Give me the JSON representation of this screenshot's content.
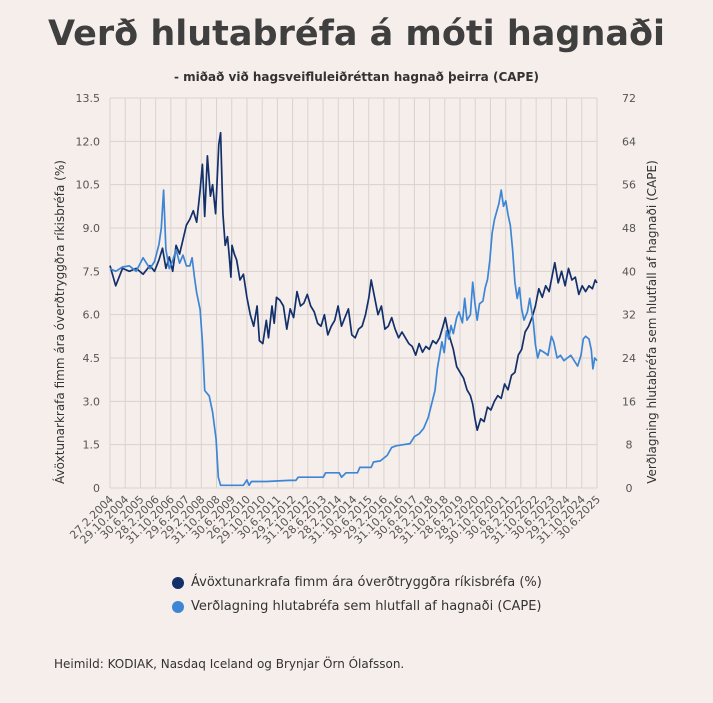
{
  "chart_data": {
    "type": "line",
    "title": "Verð hlutabréfa á móti hagnaði",
    "subtitle": "- miðað við hagsveifluleiðréttan hagnað þeirra (CAPE)",
    "ylabel_left": "Ávöxtunarkrafa fimm ára óverðtryggðra ríkisbréfa (%)",
    "ylabel_right": "Verðlagning hlutabréfa sem hlutfall af hagnaði (CAPE)",
    "ylim_left": [
      0,
      13.5
    ],
    "ylim_right": [
      0,
      72
    ],
    "yticks_left": [
      "0",
      "1.5",
      "3.0",
      "4.5",
      "6.0",
      "7.5",
      "9.0",
      "10.5",
      "12.0",
      "13.5"
    ],
    "yticks_right": [
      "0",
      "8",
      "16",
      "24",
      "32",
      "40",
      "48",
      "56",
      "64",
      "72"
    ],
    "x_tick_labels": [
      "27.2.2004",
      "29.10.2004",
      "30.6.2005",
      "28.2.2006",
      "31.10.2006",
      "29.6.2007",
      "29.2.2008",
      "31.10.2008",
      "30.6.2009",
      "26.2.2010",
      "29.10.2010",
      "30.6.2011",
      "29.2.2012",
      "31.10.2012",
      "28.6.2013",
      "28.2.2014",
      "31.10.2014",
      "30.6.2015",
      "29.2.2016",
      "31.10.2016",
      "30.6.2017",
      "28.2.2018",
      "31.10.2018",
      "28.6.2019",
      "28.2.2020",
      "30.10.2020",
      "30.6.2021",
      "28.2.2022",
      "31.10.2022",
      "30.6.2023",
      "29.2.2024",
      "31.10.2024",
      "30.6.2025"
    ],
    "grid": true,
    "legend_position": "bottom",
    "series": [
      {
        "name": "Ávöxtunarkrafa fimm ára óverðtryggðra ríkisbréfa (%)",
        "axis": "left",
        "color": "#13306b",
        "points": [
          [
            2004.15,
            7.7
          ],
          [
            2004.4,
            7.0
          ],
          [
            2004.7,
            7.6
          ],
          [
            2005.0,
            7.5
          ],
          [
            2005.3,
            7.6
          ],
          [
            2005.6,
            7.4
          ],
          [
            2005.9,
            7.7
          ],
          [
            2006.1,
            7.5
          ],
          [
            2006.3,
            7.9
          ],
          [
            2006.45,
            8.3
          ],
          [
            2006.6,
            7.6
          ],
          [
            2006.75,
            8.0
          ],
          [
            2006.9,
            7.5
          ],
          [
            2007.05,
            8.4
          ],
          [
            2007.2,
            8.1
          ],
          [
            2007.35,
            8.6
          ],
          [
            2007.5,
            9.1
          ],
          [
            2007.65,
            9.3
          ],
          [
            2007.8,
            9.6
          ],
          [
            2007.95,
            9.2
          ],
          [
            2008.1,
            10.3
          ],
          [
            2008.2,
            11.2
          ],
          [
            2008.3,
            9.4
          ],
          [
            2008.42,
            11.5
          ],
          [
            2008.55,
            10.1
          ],
          [
            2008.65,
            10.5
          ],
          [
            2008.78,
            9.5
          ],
          [
            2008.92,
            11.9
          ],
          [
            2009.0,
            12.3
          ],
          [
            2009.1,
            9.5
          ],
          [
            2009.2,
            8.4
          ],
          [
            2009.3,
            8.7
          ],
          [
            2009.38,
            8.0
          ],
          [
            2009.45,
            7.3
          ],
          [
            2009.5,
            8.4
          ],
          [
            2009.6,
            8.1
          ],
          [
            2009.7,
            7.9
          ],
          [
            2009.85,
            7.2
          ],
          [
            2010.0,
            7.4
          ],
          [
            2010.15,
            6.6
          ],
          [
            2010.3,
            6.0
          ],
          [
            2010.45,
            5.6
          ],
          [
            2010.6,
            6.3
          ],
          [
            2010.7,
            5.1
          ],
          [
            2010.85,
            5.0
          ],
          [
            2011.0,
            5.8
          ],
          [
            2011.1,
            5.2
          ],
          [
            2011.25,
            6.3
          ],
          [
            2011.35,
            5.7
          ],
          [
            2011.45,
            6.6
          ],
          [
            2011.6,
            6.5
          ],
          [
            2011.75,
            6.3
          ],
          [
            2011.9,
            5.5
          ],
          [
            2012.05,
            6.2
          ],
          [
            2012.2,
            5.9
          ],
          [
            2012.35,
            6.8
          ],
          [
            2012.5,
            6.3
          ],
          [
            2012.65,
            6.4
          ],
          [
            2012.8,
            6.7
          ],
          [
            2012.95,
            6.3
          ],
          [
            2013.1,
            6.1
          ],
          [
            2013.25,
            5.7
          ],
          [
            2013.4,
            5.6
          ],
          [
            2013.55,
            6.0
          ],
          [
            2013.7,
            5.3
          ],
          [
            2013.85,
            5.6
          ],
          [
            2014.0,
            5.8
          ],
          [
            2014.15,
            6.3
          ],
          [
            2014.3,
            5.6
          ],
          [
            2014.45,
            5.9
          ],
          [
            2014.6,
            6.2
          ],
          [
            2014.75,
            5.3
          ],
          [
            2014.9,
            5.2
          ],
          [
            2015.05,
            5.5
          ],
          [
            2015.2,
            5.6
          ],
          [
            2015.35,
            6.0
          ],
          [
            2015.5,
            6.6
          ],
          [
            2015.6,
            7.2
          ],
          [
            2015.75,
            6.6
          ],
          [
            2015.9,
            6.0
          ],
          [
            2016.05,
            6.3
          ],
          [
            2016.2,
            5.5
          ],
          [
            2016.35,
            5.6
          ],
          [
            2016.5,
            5.9
          ],
          [
            2016.65,
            5.5
          ],
          [
            2016.8,
            5.2
          ],
          [
            2016.95,
            5.4
          ],
          [
            2017.1,
            5.2
          ],
          [
            2017.25,
            5.0
          ],
          [
            2017.4,
            4.9
          ],
          [
            2017.55,
            4.6
          ],
          [
            2017.7,
            5.0
          ],
          [
            2017.85,
            4.7
          ],
          [
            2018.0,
            4.9
          ],
          [
            2018.15,
            4.8
          ],
          [
            2018.3,
            5.1
          ],
          [
            2018.45,
            5.0
          ],
          [
            2018.6,
            5.2
          ],
          [
            2018.75,
            5.6
          ],
          [
            2018.85,
            5.9
          ],
          [
            2018.95,
            5.5
          ],
          [
            2019.05,
            5.2
          ],
          [
            2019.2,
            4.8
          ],
          [
            2019.35,
            4.2
          ],
          [
            2019.5,
            4.0
          ],
          [
            2019.65,
            3.8
          ],
          [
            2019.8,
            3.4
          ],
          [
            2019.95,
            3.2
          ],
          [
            2020.05,
            2.9
          ],
          [
            2020.15,
            2.4
          ],
          [
            2020.25,
            2.0
          ],
          [
            2020.4,
            2.4
          ],
          [
            2020.55,
            2.3
          ],
          [
            2020.7,
            2.8
          ],
          [
            2020.85,
            2.7
          ],
          [
            2021.0,
            3.0
          ],
          [
            2021.15,
            3.2
          ],
          [
            2021.3,
            3.1
          ],
          [
            2021.45,
            3.6
          ],
          [
            2021.6,
            3.4
          ],
          [
            2021.75,
            3.9
          ],
          [
            2021.9,
            4.0
          ],
          [
            2022.05,
            4.6
          ],
          [
            2022.2,
            4.8
          ],
          [
            2022.35,
            5.4
          ],
          [
            2022.5,
            5.6
          ],
          [
            2022.65,
            5.9
          ],
          [
            2022.8,
            6.3
          ],
          [
            2022.95,
            6.9
          ],
          [
            2023.1,
            6.6
          ],
          [
            2023.25,
            7.0
          ],
          [
            2023.4,
            6.8
          ],
          [
            2023.55,
            7.4
          ],
          [
            2023.65,
            7.8
          ],
          [
            2023.8,
            7.1
          ],
          [
            2023.95,
            7.5
          ],
          [
            2024.1,
            7.0
          ],
          [
            2024.25,
            7.6
          ],
          [
            2024.4,
            7.2
          ],
          [
            2024.55,
            7.3
          ],
          [
            2024.7,
            6.7
          ],
          [
            2024.85,
            7.0
          ],
          [
            2025.0,
            6.8
          ],
          [
            2025.15,
            7.0
          ],
          [
            2025.3,
            6.9
          ],
          [
            2025.42,
            7.2
          ],
          [
            2025.5,
            7.1
          ]
        ]
      },
      {
        "name": "Verðlagning hlutabréfa sem hlutfall af hagnaði (CAPE)",
        "axis": "right",
        "color": "#3d86d6",
        "points": [
          [
            2004.15,
            40.5
          ],
          [
            2004.4,
            40.0
          ],
          [
            2004.7,
            40.8
          ],
          [
            2005.0,
            41.0
          ],
          [
            2005.3,
            40.0
          ],
          [
            2005.6,
            42.5
          ],
          [
            2005.9,
            40.5
          ],
          [
            2006.1,
            41.8
          ],
          [
            2006.3,
            45.0
          ],
          [
            2006.4,
            48.0
          ],
          [
            2006.5,
            55.0
          ],
          [
            2006.6,
            44.0
          ],
          [
            2006.75,
            40.5
          ],
          [
            2006.9,
            42.0
          ],
          [
            2007.05,
            44.0
          ],
          [
            2007.2,
            41.5
          ],
          [
            2007.35,
            43.0
          ],
          [
            2007.5,
            41.0
          ],
          [
            2007.65,
            41.0
          ],
          [
            2007.75,
            42.5
          ],
          [
            2007.85,
            39.0
          ],
          [
            2007.95,
            36.0
          ],
          [
            2008.1,
            33.0
          ],
          [
            2008.2,
            27.0
          ],
          [
            2008.3,
            18.0
          ],
          [
            2008.5,
            17.0
          ],
          [
            2008.65,
            14.0
          ],
          [
            2008.8,
            9.0
          ],
          [
            2008.9,
            2.0
          ],
          [
            2009.0,
            0.5
          ],
          [
            2009.5,
            0.5
          ],
          [
            2010.0,
            0.5
          ],
          [
            2010.15,
            1.5
          ],
          [
            2010.25,
            0.5
          ],
          [
            2010.35,
            1.2
          ],
          [
            2011.0,
            1.2
          ],
          [
            2012.0,
            1.4
          ],
          [
            2012.3,
            1.4
          ],
          [
            2012.4,
            2.0
          ],
          [
            2013.5,
            2.0
          ],
          [
            2013.6,
            2.8
          ],
          [
            2014.2,
            2.8
          ],
          [
            2014.3,
            2.0
          ],
          [
            2014.5,
            2.8
          ],
          [
            2015.0,
            2.8
          ],
          [
            2015.1,
            3.8
          ],
          [
            2015.6,
            3.8
          ],
          [
            2015.7,
            4.8
          ],
          [
            2016.0,
            5.0
          ],
          [
            2016.3,
            6.0
          ],
          [
            2016.5,
            7.5
          ],
          [
            2016.7,
            7.8
          ],
          [
            2017.0,
            8.0
          ],
          [
            2017.3,
            8.2
          ],
          [
            2017.5,
            9.5
          ],
          [
            2017.7,
            10.0
          ],
          [
            2017.9,
            11.0
          ],
          [
            2018.1,
            13.0
          ],
          [
            2018.25,
            15.5
          ],
          [
            2018.4,
            18.0
          ],
          [
            2018.5,
            22.0
          ],
          [
            2018.6,
            24.5
          ],
          [
            2018.7,
            27.0
          ],
          [
            2018.8,
            25.0
          ],
          [
            2018.9,
            29.0
          ],
          [
            2019.0,
            27.5
          ],
          [
            2019.1,
            30.0
          ],
          [
            2019.2,
            28.5
          ],
          [
            2019.35,
            31.5
          ],
          [
            2019.45,
            32.5
          ],
          [
            2019.6,
            30.5
          ],
          [
            2019.7,
            35.0
          ],
          [
            2019.8,
            31.0
          ],
          [
            2019.95,
            32.0
          ],
          [
            2020.05,
            38.0
          ],
          [
            2020.15,
            34.0
          ],
          [
            2020.25,
            31.0
          ],
          [
            2020.35,
            34.0
          ],
          [
            2020.5,
            34.5
          ],
          [
            2020.6,
            37.0
          ],
          [
            2020.7,
            38.5
          ],
          [
            2020.8,
            42.0
          ],
          [
            2020.9,
            47.0
          ],
          [
            2021.0,
            49.5
          ],
          [
            2021.1,
            51.0
          ],
          [
            2021.2,
            52.5
          ],
          [
            2021.3,
            55.0
          ],
          [
            2021.4,
            52.0
          ],
          [
            2021.5,
            53.0
          ],
          [
            2021.6,
            50.5
          ],
          [
            2021.7,
            48.5
          ],
          [
            2021.8,
            44.0
          ],
          [
            2021.9,
            38.0
          ],
          [
            2022.0,
            35.0
          ],
          [
            2022.1,
            37.0
          ],
          [
            2022.2,
            33.0
          ],
          [
            2022.3,
            31.0
          ],
          [
            2022.45,
            32.5
          ],
          [
            2022.55,
            35.0
          ],
          [
            2022.7,
            31.0
          ],
          [
            2022.8,
            26.5
          ],
          [
            2022.9,
            24.0
          ],
          [
            2023.0,
            25.5
          ],
          [
            2023.2,
            25.0
          ],
          [
            2023.35,
            24.5
          ],
          [
            2023.5,
            28.0
          ],
          [
            2023.6,
            27.0
          ],
          [
            2023.75,
            24.0
          ],
          [
            2023.9,
            24.5
          ],
          [
            2024.05,
            23.5
          ],
          [
            2024.2,
            24.0
          ],
          [
            2024.35,
            24.5
          ],
          [
            2024.5,
            23.5
          ],
          [
            2024.65,
            22.5
          ],
          [
            2024.8,
            24.5
          ],
          [
            2024.9,
            27.5
          ],
          [
            2025.0,
            28.0
          ],
          [
            2025.15,
            27.5
          ],
          [
            2025.25,
            25.5
          ],
          [
            2025.32,
            22.0
          ],
          [
            2025.4,
            24.0
          ],
          [
            2025.5,
            23.5
          ]
        ]
      }
    ]
  },
  "source_note": "Heimild: KODIAK, Nasdaq Iceland og Brynjar Örn Ólafsson."
}
